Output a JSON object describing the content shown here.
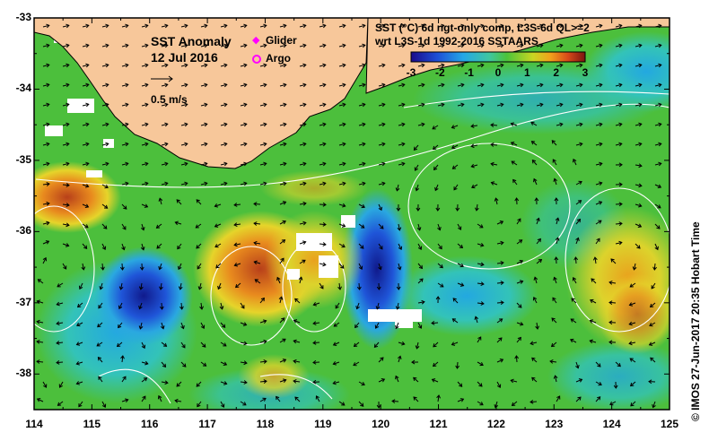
{
  "map": {
    "title_line1": "SST Anomaly",
    "title_line2": "12 Jul 2016",
    "scale_label": "0.5 m/s",
    "legend": {
      "glider_label": "Glider",
      "argo_label": "Argo",
      "glider_color": "#ff00ff",
      "argo_color": "#ff00ff"
    },
    "product": {
      "line1": "SST (°C) 6d ngt-only comp, L3S-6d QL>=2",
      "line2": "wrt L3S-1d 1992-2016 SSTAARS"
    },
    "colorbar": {
      "ticks": [
        "-3",
        "-2",
        "-1",
        "0",
        "1",
        "2",
        "3"
      ],
      "range": [
        -3,
        3
      ]
    },
    "longitude_ticks": [
      "114",
      "115",
      "116",
      "117",
      "118",
      "119",
      "120",
      "121",
      "122",
      "123",
      "124",
      "125"
    ],
    "latitude_ticks": [
      "-33",
      "-34",
      "-35",
      "-36",
      "-37",
      "-38"
    ],
    "lon_range": [
      114,
      125
    ],
    "lat_range": [
      -38.5,
      -33
    ],
    "credit": "© IMOS 27-Jun-2017 20:35 Hobart Time",
    "colors": {
      "land": "#f7c79a",
      "ocean_base": "#4cbf3c",
      "frame": "#000000"
    }
  }
}
